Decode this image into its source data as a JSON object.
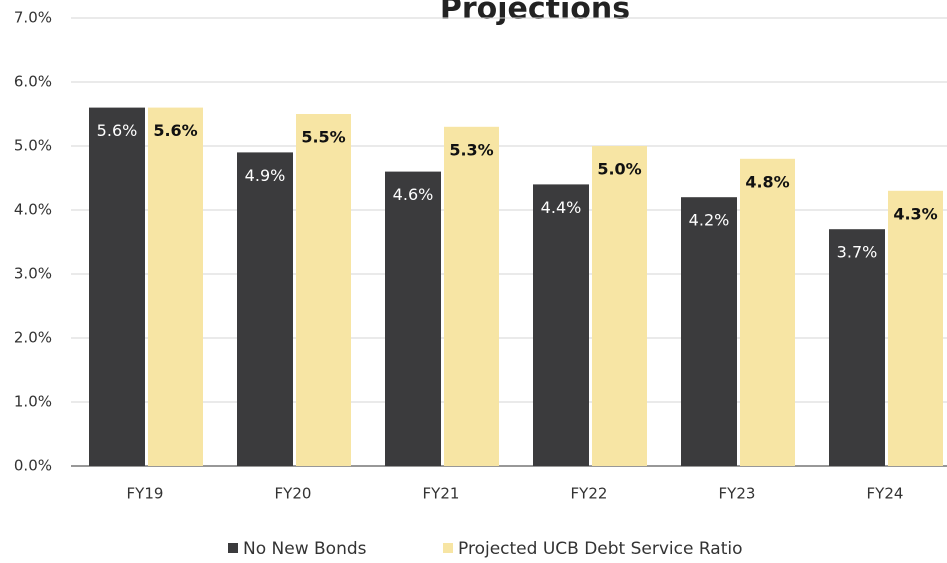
{
  "chart_data": {
    "type": "bar",
    "title": "Projections",
    "categories": [
      "FY19",
      "FY20",
      "FY21",
      "FY22",
      "FY23",
      "FY24"
    ],
    "series": [
      {
        "name": "No New Bonds",
        "color": "#3b3b3d",
        "values": [
          5.6,
          4.9,
          4.6,
          4.4,
          4.2,
          3.7
        ],
        "value_labels": [
          "5.6%",
          "4.9%",
          "4.6%",
          "4.4%",
          "4.2%",
          "3.7%"
        ]
      },
      {
        "name": "Projected UCB Debt Service Ratio",
        "color": "#f7e5a4",
        "values": [
          5.6,
          5.5,
          5.3,
          5.0,
          4.8,
          4.3
        ],
        "value_labels": [
          "5.6%",
          "5.5%",
          "5.3%",
          "5.0%",
          "4.8%",
          "4.3%"
        ]
      }
    ],
    "ylim": [
      0,
      7
    ],
    "yticks": [
      {
        "value": 0,
        "label": "0.0%"
      },
      {
        "value": 1,
        "label": "1.0%"
      },
      {
        "value": 2,
        "label": "2.0%"
      },
      {
        "value": 3,
        "label": "3.0%"
      },
      {
        "value": 4,
        "label": "4.0%"
      },
      {
        "value": 5,
        "label": "5.0%"
      },
      {
        "value": 6,
        "label": "6.0%"
      },
      {
        "value": 7,
        "label": "7.0%"
      }
    ],
    "grid": true,
    "legend": "bottom"
  }
}
